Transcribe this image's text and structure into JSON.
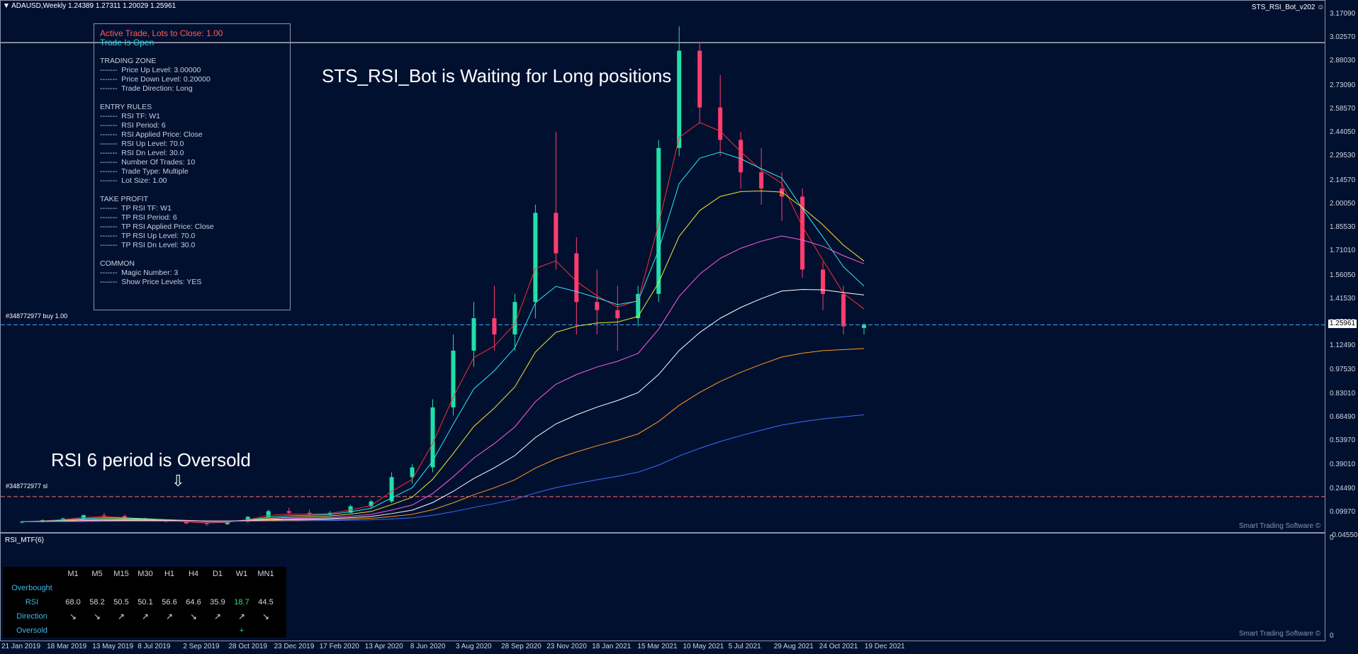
{
  "header": {
    "symbol_line": "ADAUSD,Weekly  1.24389 1.27311 1.20029 1.25961",
    "expert_name": "STS_RSI_Bot_v202"
  },
  "info_panel": {
    "active_trade": "Active Trade, Lots to Close: 1.00",
    "trade_status": "Trade Is Open",
    "sections": [
      {
        "title": "TRADING ZONE",
        "items": [
          "-------  Price Up Level: 3.00000",
          "-------  Price Down Level: 0.20000",
          "-------  Trade Direction: Long"
        ]
      },
      {
        "title": "ENTRY RULES",
        "items": [
          "-------  RSI TF: W1",
          "-------  RSI Period: 6",
          "-------  RSI Applied Price: Close",
          "-------  RSI Up Level: 70.0",
          "-------  RSI Dn Level: 30.0",
          "-------  Number Of Trades: 10",
          "-------  Trade Type: Multiple",
          "-------  Lot Size: 1.00"
        ]
      },
      {
        "title": "TAKE PROFIT",
        "items": [
          "-------  TP RSI TF: W1",
          "-------  TP RSI Period: 6",
          "-------  TP RSI Applied Price: Close",
          "-------  TP RSI Up Level: 70.0",
          "-------  TP RSI Dn Level: 30.0"
        ]
      },
      {
        "title": "COMMON",
        "items": [
          "-------  Magic Number: 3",
          "-------  Show Price Levels: YES"
        ]
      }
    ]
  },
  "messages": {
    "bot_status": "STS_RSI_Bot is Waiting for Long positions",
    "rsi_status": "RSI 6 period is Oversold",
    "down_arrow": "⇩"
  },
  "order_lines": {
    "buy_label": "#348772977 buy 1.00",
    "sl_label": "#348772977 sl"
  },
  "current_price": "1.25961",
  "price_scale": [
    "3.17090",
    "3.02570",
    "2.88030",
    "2.73090",
    "2.58570",
    "2.44050",
    "2.29530",
    "2.14570",
    "2.00050",
    "1.85530",
    "1.71010",
    "1.56050",
    "1.41530",
    "1.27010",
    "1.12490",
    "0.97530",
    "0.83010",
    "0.68490",
    "0.53970",
    "0.39010",
    "0.24490",
    "0.09970",
    "-0.04550"
  ],
  "copyright": "Smart Trading Software ©",
  "indicator": {
    "name": "RSI_MTF(6)",
    "scale_top": "0",
    "scale_bottom": "0",
    "columns": [
      "M1",
      "M5",
      "M15",
      "M30",
      "H1",
      "H4",
      "D1",
      "W1",
      "MN1"
    ],
    "row_labels": {
      "overbought": "Overbought",
      "rsi": "RSI",
      "direction": "Direction",
      "oversold": "Oversold"
    },
    "rsi_values": [
      "68.0",
      "58.2",
      "50.5",
      "50.1",
      "56.6",
      "64.6",
      "35.9",
      "18.7",
      "44.5"
    ],
    "directions": [
      "↘",
      "↘",
      "↗",
      "↗",
      "↗",
      "↘",
      "↗",
      "↗",
      "↘"
    ],
    "oversold_marks": [
      "",
      "",
      "",
      "",
      "",
      "",
      "",
      "+",
      ""
    ],
    "colors": {
      "highlight": "#2ee07a",
      "label": "#3fb7e8"
    }
  },
  "time_axis": [
    "21 Jan 2019",
    "18 Mar 2019",
    "13 May 2019",
    "8 Jul 2019",
    "2 Sep 2019",
    "28 Oct 2019",
    "23 Dec 2019",
    "17 Feb 2020",
    "13 Apr 2020",
    "8 Jun 2020",
    "3 Aug 2020",
    "28 Sep 2020",
    "23 Nov 2020",
    "18 Jan 2021",
    "15 Mar 2021",
    "10 May 2021",
    "5 Jul 2021",
    "29 Aug 2021",
    "24 Oct 2021",
    "19 Dec 2021"
  ],
  "chart_data": {
    "type": "candlestick",
    "candles_ohlc": [
      [
        0.04,
        0.05,
        0.035,
        0.045
      ],
      [
        0.045,
        0.06,
        0.04,
        0.055
      ],
      [
        0.055,
        0.07,
        0.05,
        0.065
      ],
      [
        0.065,
        0.09,
        0.06,
        0.085
      ],
      [
        0.085,
        0.1,
        0.075,
        0.08
      ],
      [
        0.08,
        0.09,
        0.06,
        0.065
      ],
      [
        0.065,
        0.07,
        0.05,
        0.055
      ],
      [
        0.055,
        0.06,
        0.04,
        0.045
      ],
      [
        0.045,
        0.05,
        0.03,
        0.035
      ],
      [
        0.035,
        0.04,
        0.02,
        0.03
      ],
      [
        0.03,
        0.05,
        0.025,
        0.045
      ],
      [
        0.045,
        0.08,
        0.04,
        0.075
      ],
      [
        0.075,
        0.12,
        0.07,
        0.11
      ],
      [
        0.11,
        0.13,
        0.09,
        0.1
      ],
      [
        0.1,
        0.12,
        0.08,
        0.09
      ],
      [
        0.09,
        0.11,
        0.08,
        0.1
      ],
      [
        0.1,
        0.15,
        0.1,
        0.14
      ],
      [
        0.14,
        0.18,
        0.13,
        0.17
      ],
      [
        0.17,
        0.35,
        0.16,
        0.32
      ],
      [
        0.32,
        0.4,
        0.28,
        0.38
      ],
      [
        0.38,
        0.8,
        0.35,
        0.75
      ],
      [
        0.75,
        1.2,
        0.7,
        1.1
      ],
      [
        1.1,
        1.4,
        1.0,
        1.3
      ],
      [
        1.3,
        1.5,
        1.1,
        1.2
      ],
      [
        1.2,
        1.45,
        1.1,
        1.4
      ],
      [
        1.4,
        2.0,
        1.3,
        1.95
      ],
      [
        1.95,
        2.45,
        1.6,
        1.7
      ],
      [
        1.7,
        1.8,
        1.2,
        1.4
      ],
      [
        1.4,
        1.6,
        1.2,
        1.35
      ],
      [
        1.35,
        1.5,
        1.1,
        1.3
      ],
      [
        1.3,
        1.5,
        1.25,
        1.45
      ],
      [
        1.45,
        2.4,
        1.4,
        2.35
      ],
      [
        2.35,
        3.1,
        2.3,
        2.95
      ],
      [
        2.95,
        3.0,
        2.5,
        2.6
      ],
      [
        2.6,
        2.8,
        2.3,
        2.4
      ],
      [
        2.4,
        2.45,
        2.1,
        2.2
      ],
      [
        2.2,
        2.35,
        2.0,
        2.1
      ],
      [
        2.1,
        2.2,
        1.9,
        2.05
      ],
      [
        2.05,
        2.1,
        1.55,
        1.6
      ],
      [
        1.6,
        1.65,
        1.35,
        1.45
      ],
      [
        1.45,
        1.5,
        1.2,
        1.25
      ],
      [
        1.24,
        1.27,
        1.2,
        1.26
      ]
    ],
    "horizontal_levels": {
      "buy": 1.25961,
      "sl": 0.2,
      "upper": 3.0
    }
  }
}
